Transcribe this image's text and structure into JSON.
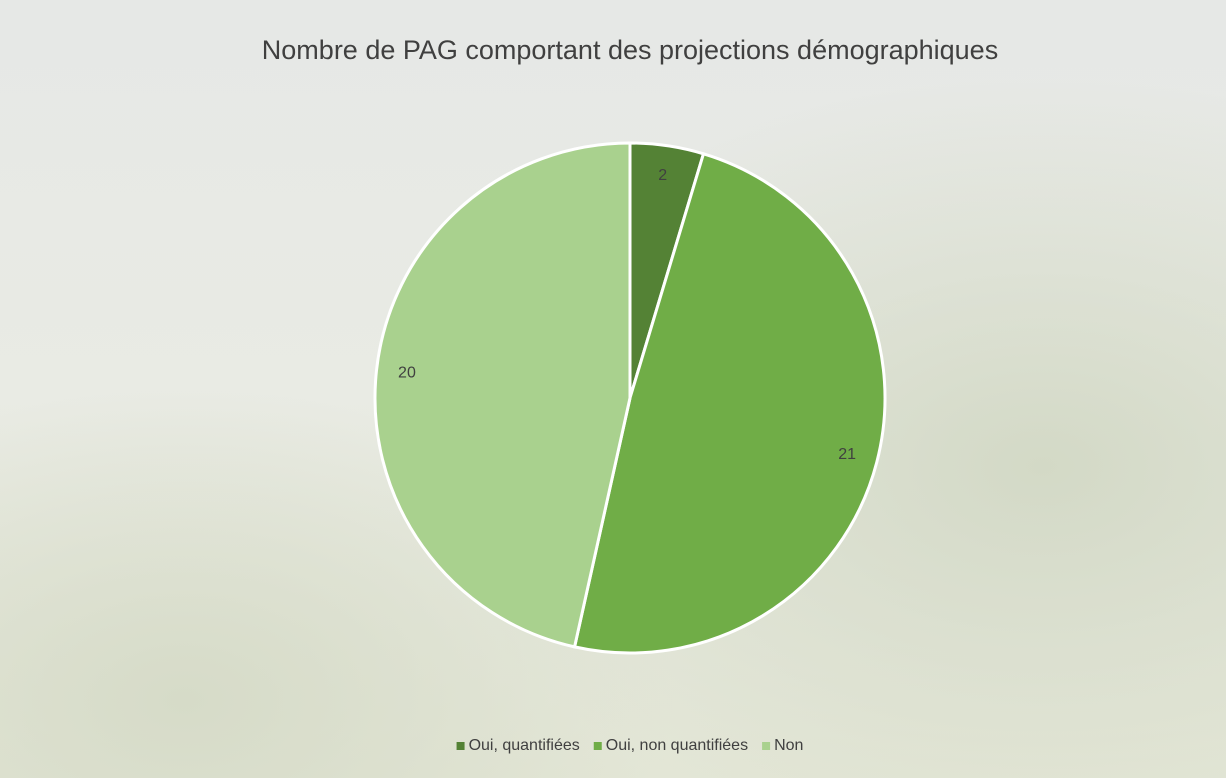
{
  "chart_data": {
    "type": "pie",
    "title": "Nombre de PAG comportant des projections démographiques",
    "categories": [
      "Oui, quantifiées",
      "Oui, non quantifiées",
      "Non"
    ],
    "values": [
      2,
      21,
      20
    ],
    "colors": [
      "#548235",
      "#70ad47",
      "#a9d18e"
    ],
    "legend": "bottom"
  }
}
